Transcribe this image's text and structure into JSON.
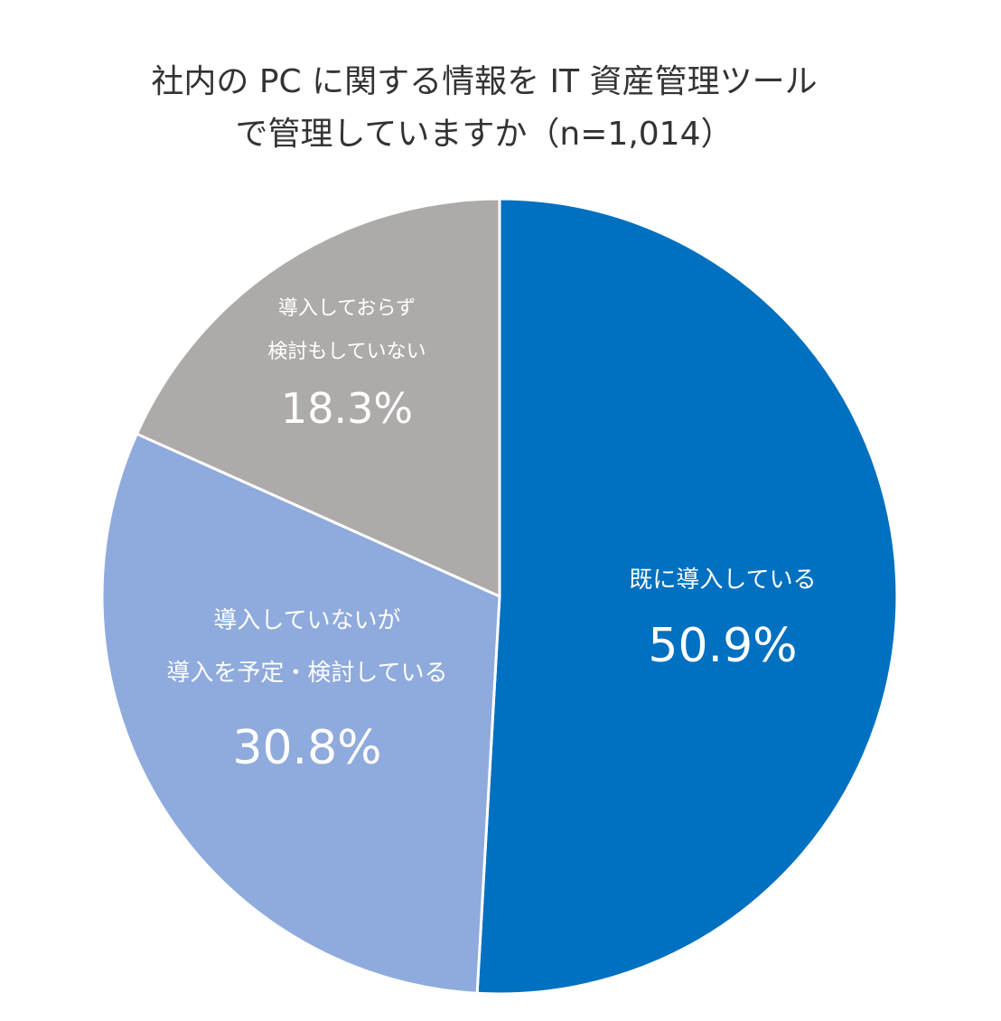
{
  "chart_data": {
    "type": "pie",
    "title": [
      "社内の PC に関する情報を IT 資産管理ツール",
      "で管理していますか（n=1,014）"
    ],
    "slices": [
      {
        "label_lines": [
          "既に導入している"
        ],
        "value": 50.9,
        "value_label": "50.9%",
        "color": "#0070C0"
      },
      {
        "label_lines": [
          "導入していないが",
          "導入を予定・検討している"
        ],
        "value": 30.8,
        "value_label": "30.8%",
        "color": "#8FAADC"
      },
      {
        "label_lines": [
          "導入しておらず",
          "検討もしていない"
        ],
        "value": 18.3,
        "value_label": "18.3%",
        "color": "#AEAAAA"
      }
    ],
    "start_angle_deg": 0,
    "direction": "clockwise",
    "legend": "none"
  }
}
